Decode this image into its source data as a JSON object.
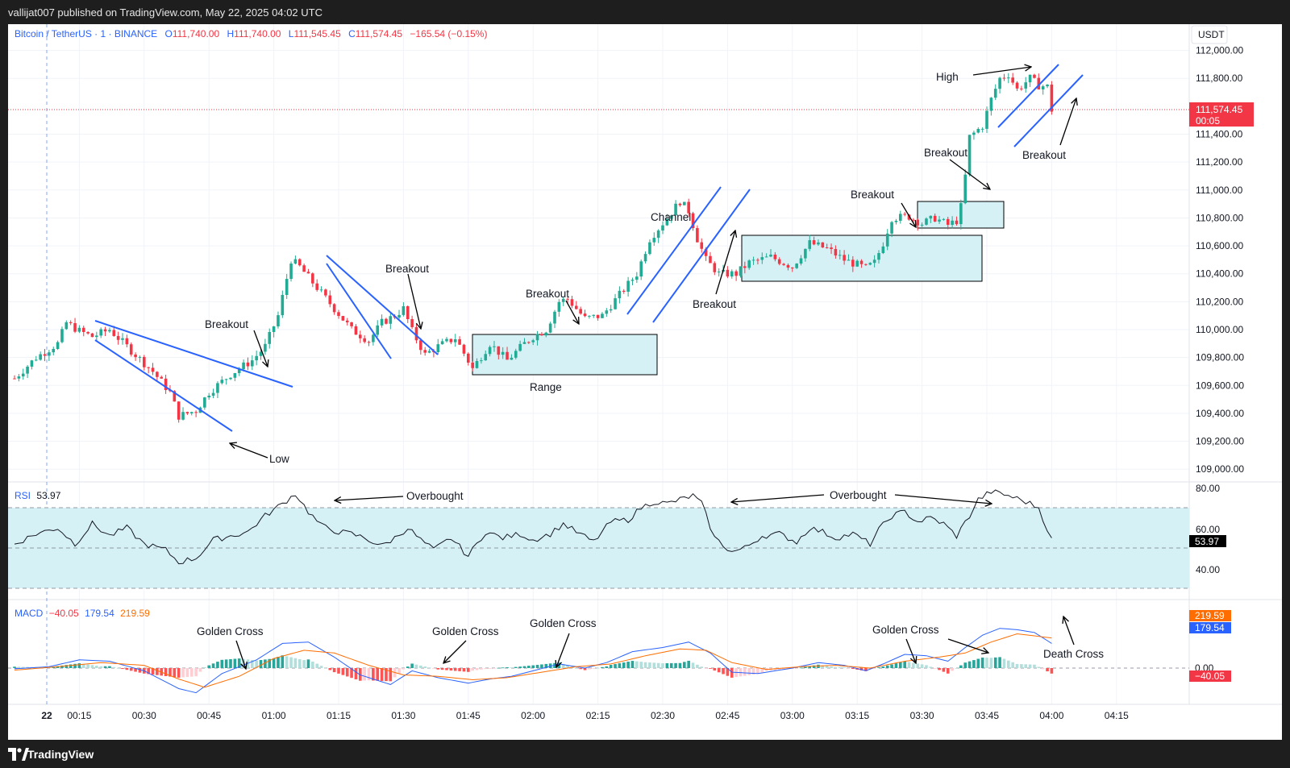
{
  "header": {
    "published": "vallijat007 published on TradingView.com, May 22, 2025 04:02 UTC"
  },
  "footer": {
    "brand": "TradingView"
  },
  "colors": {
    "up": "#22ab94",
    "down": "#f23645",
    "pattern": "#2962ff",
    "rsi_band": "#d6f1f6",
    "macd": "#2962ff",
    "signal": "#ff6d00"
  },
  "symbol": {
    "name": "Bitcoin / TetherUS · 1 · BINANCE",
    "open_label": "O",
    "open": "111,740.00",
    "high_label": "H",
    "high": "111,740.00",
    "low_label": "L",
    "low": "111,545.45",
    "close_label": "C",
    "close": "111,574.45",
    "change": "−165.54 (−0.15%)"
  },
  "currency": "USDT",
  "last_price": {
    "price": "111,574.45",
    "countdown": "00:05"
  },
  "chart_data": {
    "type": "candlestick",
    "price_axis": [
      "112,000.00",
      "111,800.00",
      "111,400.00",
      "111,200.00",
      "111,000.00",
      "110,800.00",
      "110,600.00",
      "110,400.00",
      "110,200.00",
      "110,000.00",
      "109,800.00",
      "109,600.00",
      "109,400.00",
      "109,200.00",
      "109,000.00"
    ],
    "time_axis": [
      "22",
      "00:15",
      "00:30",
      "00:45",
      "01:00",
      "01:15",
      "01:30",
      "01:45",
      "02:00",
      "02:15",
      "02:30",
      "02:45",
      "03:00",
      "03:15",
      "03:30",
      "03:45",
      "04:00",
      "04:15"
    ],
    "ohlc_start": "00:00",
    "ohlc_interval_minutes": 1,
    "ohlc_anchors": [
      [
        "00:00",
        109650
      ],
      [
        "00:05",
        109800
      ],
      [
        "00:10",
        109900
      ],
      [
        "00:12",
        110050
      ],
      [
        "00:15",
        109990
      ],
      [
        "00:18",
        109950
      ],
      [
        "00:22",
        110000
      ],
      [
        "00:27",
        109850
      ],
      [
        "00:32",
        109700
      ],
      [
        "00:36",
        109550
      ],
      [
        "00:38",
        109380
      ],
      [
        "00:42",
        109420
      ],
      [
        "00:45",
        109550
      ],
      [
        "00:50",
        109680
      ],
      [
        "00:55",
        109780
      ],
      [
        "00:58",
        109880
      ],
      [
        "01:01",
        110100
      ],
      [
        "01:04",
        110500
      ],
      [
        "01:06",
        110450
      ],
      [
        "01:10",
        110300
      ],
      [
        "01:14",
        110150
      ],
      [
        "01:18",
        110000
      ],
      [
        "01:22",
        109920
      ],
      [
        "01:25",
        110050
      ],
      [
        "01:28",
        110100
      ],
      [
        "01:30",
        110150
      ],
      [
        "01:32",
        109990
      ],
      [
        "01:35",
        109820
      ],
      [
        "01:38",
        109880
      ],
      [
        "01:42",
        109940
      ],
      [
        "01:46",
        109720
      ],
      [
        "01:50",
        109900
      ],
      [
        "01:54",
        109780
      ],
      [
        "01:58",
        109900
      ],
      [
        "02:00",
        109950
      ],
      [
        "02:03",
        110000
      ],
      [
        "02:06",
        110200
      ],
      [
        "02:08",
        110220
      ],
      [
        "02:12",
        110080
      ],
      [
        "02:16",
        110100
      ],
      [
        "02:20",
        110250
      ],
      [
        "02:24",
        110400
      ],
      [
        "02:27",
        110650
      ],
      [
        "02:31",
        110800
      ],
      [
        "02:34",
        110920
      ],
      [
        "02:36",
        110850
      ],
      [
        "02:38",
        110650
      ],
      [
        "02:40",
        110500
      ],
      [
        "02:43",
        110400
      ],
      [
        "02:47",
        110400
      ],
      [
        "02:50",
        110480
      ],
      [
        "02:55",
        110520
      ],
      [
        "03:00",
        110450
      ],
      [
        "03:04",
        110620
      ],
      [
        "03:08",
        110580
      ],
      [
        "03:12",
        110500
      ],
      [
        "03:17",
        110440
      ],
      [
        "03:19",
        110480
      ],
      [
        "03:21",
        110620
      ],
      [
        "03:23",
        110800
      ],
      [
        "03:27",
        110810
      ],
      [
        "03:30",
        110760
      ],
      [
        "03:33",
        110800
      ],
      [
        "03:36",
        110750
      ],
      [
        "03:38",
        110780
      ],
      [
        "03:39",
        110880
      ],
      [
        "03:40",
        111100
      ],
      [
        "03:41",
        111380
      ],
      [
        "03:44",
        111460
      ],
      [
        "03:46",
        111650
      ],
      [
        "03:48",
        111800
      ],
      [
        "03:50",
        111830
      ],
      [
        "03:52",
        111720
      ],
      [
        "03:55",
        111800
      ],
      [
        "03:57",
        111750
      ],
      [
        "03:59",
        111740
      ],
      [
        "04:00",
        111574
      ]
    ],
    "annotations": [
      "Breakout",
      "Low",
      "Breakout",
      "Breakout",
      "Range",
      "Channel",
      "Breakout",
      "Breakout",
      "Breakout",
      "High",
      "Breakout"
    ]
  },
  "rsi": {
    "label": "RSI",
    "value": "53.97",
    "axis": [
      "80.00",
      "60.00",
      "40.00"
    ],
    "anchors": [
      [
        "00:00",
        52
      ],
      [
        "00:05",
        57
      ],
      [
        "00:10",
        60
      ],
      [
        "00:14",
        52
      ],
      [
        "00:18",
        62
      ],
      [
        "00:22",
        56
      ],
      [
        "00:26",
        60
      ],
      [
        "00:30",
        52
      ],
      [
        "00:35",
        49
      ],
      [
        "00:38",
        43
      ],
      [
        "00:42",
        45
      ],
      [
        "00:46",
        54
      ],
      [
        "00:50",
        56
      ],
      [
        "00:54",
        58
      ],
      [
        "00:58",
        66
      ],
      [
        "01:02",
        72
      ],
      [
        "01:05",
        77
      ],
      [
        "01:08",
        68
      ],
      [
        "01:11",
        61
      ],
      [
        "01:15",
        58
      ],
      [
        "01:18",
        57
      ],
      [
        "01:21",
        55
      ],
      [
        "01:25",
        51
      ],
      [
        "01:28",
        55
      ],
      [
        "01:31",
        60
      ],
      [
        "01:34",
        54
      ],
      [
        "01:37",
        49
      ],
      [
        "01:41",
        55
      ],
      [
        "01:45",
        46
      ],
      [
        "01:49",
        58
      ],
      [
        "01:53",
        55
      ],
      [
        "01:57",
        57
      ],
      [
        "02:00",
        54
      ],
      [
        "02:04",
        57
      ],
      [
        "02:07",
        62
      ],
      [
        "02:10",
        58
      ],
      [
        "02:14",
        53
      ],
      [
        "02:18",
        63
      ],
      [
        "02:22",
        64
      ],
      [
        "02:25",
        70
      ],
      [
        "02:28",
        73
      ],
      [
        "02:31",
        72
      ],
      [
        "02:34",
        74
      ],
      [
        "02:37",
        76
      ],
      [
        "02:39",
        72
      ],
      [
        "02:42",
        55
      ],
      [
        "02:46",
        48
      ],
      [
        "02:49",
        50
      ],
      [
        "02:53",
        56
      ],
      [
        "02:57",
        57
      ],
      [
        "03:01",
        53
      ],
      [
        "03:04",
        60
      ],
      [
        "03:07",
        58
      ],
      [
        "03:10",
        55
      ],
      [
        "03:14",
        57
      ],
      [
        "03:18",
        52
      ],
      [
        "03:20",
        59
      ],
      [
        "03:23",
        66
      ],
      [
        "03:26",
        68
      ],
      [
        "03:29",
        63
      ],
      [
        "03:32",
        65
      ],
      [
        "03:35",
        62
      ],
      [
        "03:38",
        56
      ],
      [
        "03:41",
        66
      ],
      [
        "03:43",
        74
      ],
      [
        "03:46",
        78
      ],
      [
        "03:50",
        76
      ],
      [
        "03:54",
        73
      ],
      [
        "03:57",
        70
      ],
      [
        "04:00",
        54
      ]
    ],
    "annotations": [
      "Overbought",
      "Overbought"
    ]
  },
  "macd": {
    "label": "MACD",
    "hist": "−40.05",
    "macd": "179.54",
    "signal": "219.59",
    "axis": [
      "0.00"
    ],
    "macd_anchors": [
      [
        "00:00",
        -5
      ],
      [
        "00:08",
        10
      ],
      [
        "00:15",
        60
      ],
      [
        "00:22",
        50
      ],
      [
        "00:30",
        -20
      ],
      [
        "00:38",
        -150
      ],
      [
        "00:42",
        -180
      ],
      [
        "00:48",
        -40
      ],
      [
        "00:56",
        60
      ],
      [
        "01:02",
        180
      ],
      [
        "01:08",
        190
      ],
      [
        "01:14",
        80
      ],
      [
        "01:20",
        -50
      ],
      [
        "01:27",
        -120
      ],
      [
        "01:32",
        -20
      ],
      [
        "01:38",
        -70
      ],
      [
        "01:45",
        -110
      ],
      [
        "01:50",
        -80
      ],
      [
        "01:55",
        -60
      ],
      [
        "02:00",
        -20
      ],
      [
        "02:06",
        30
      ],
      [
        "02:12",
        0
      ],
      [
        "02:17",
        40
      ],
      [
        "02:23",
        120
      ],
      [
        "02:30",
        150
      ],
      [
        "02:36",
        190
      ],
      [
        "02:41",
        110
      ],
      [
        "02:46",
        -30
      ],
      [
        "02:52",
        -40
      ],
      [
        "03:00",
        0
      ],
      [
        "03:06",
        40
      ],
      [
        "03:12",
        20
      ],
      [
        "03:17",
        -20
      ],
      [
        "03:21",
        30
      ],
      [
        "03:26",
        100
      ],
      [
        "03:31",
        90
      ],
      [
        "03:36",
        50
      ],
      [
        "03:40",
        150
      ],
      [
        "03:44",
        240
      ],
      [
        "03:48",
        290
      ],
      [
        "03:52",
        280
      ],
      [
        "03:56",
        260
      ],
      [
        "04:00",
        180
      ]
    ],
    "signal_anchors": [
      [
        "00:00",
        -15
      ],
      [
        "00:10",
        10
      ],
      [
        "00:20",
        40
      ],
      [
        "00:30",
        20
      ],
      [
        "00:38",
        -80
      ],
      [
        "00:44",
        -140
      ],
      [
        "00:52",
        -60
      ],
      [
        "01:00",
        70
      ],
      [
        "01:07",
        130
      ],
      [
        "01:14",
        110
      ],
      [
        "01:22",
        20
      ],
      [
        "01:30",
        -50
      ],
      [
        "01:38",
        -60
      ],
      [
        "01:46",
        -85
      ],
      [
        "01:54",
        -70
      ],
      [
        "02:02",
        -30
      ],
      [
        "02:10",
        10
      ],
      [
        "02:18",
        30
      ],
      [
        "02:26",
        90
      ],
      [
        "02:34",
        140
      ],
      [
        "02:40",
        130
      ],
      [
        "02:46",
        40
      ],
      [
        "02:54",
        -10
      ],
      [
        "03:02",
        10
      ],
      [
        "03:10",
        20
      ],
      [
        "03:18",
        0
      ],
      [
        "03:26",
        50
      ],
      [
        "03:34",
        80
      ],
      [
        "03:40",
        110
      ],
      [
        "03:46",
        190
      ],
      [
        "03:52",
        250
      ],
      [
        "04:00",
        220
      ]
    ],
    "annotations": [
      "Golden Cross",
      "Golden Cross",
      "Golden Cross",
      "Golden Cross",
      "Death Cross"
    ]
  }
}
